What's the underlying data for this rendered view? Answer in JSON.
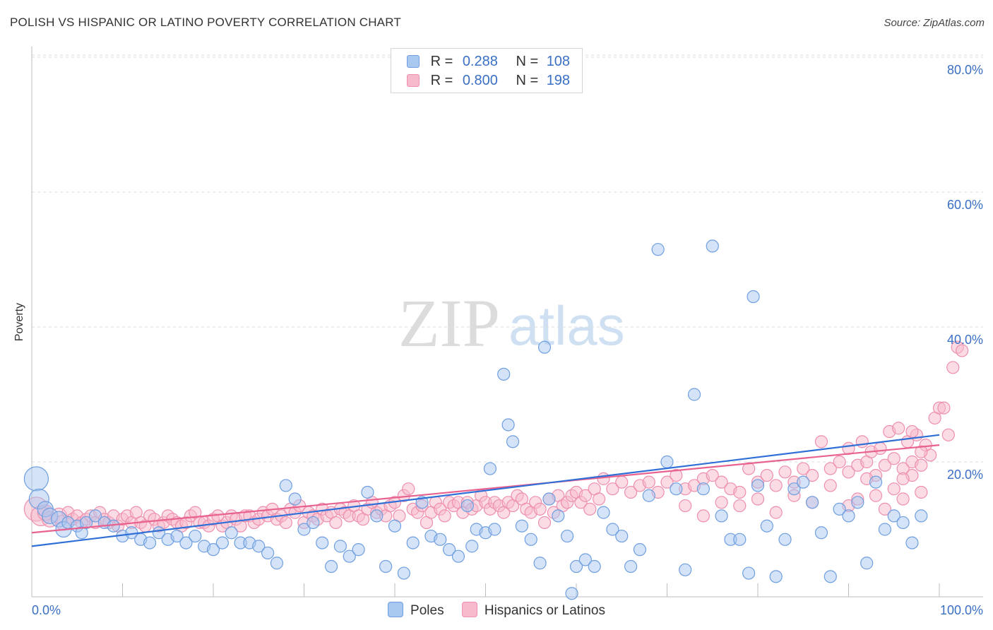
{
  "title": "POLISH VS HISPANIC OR LATINO POVERTY CORRELATION CHART",
  "source": "Source: ZipAtlas.com",
  "watermark": {
    "zip": "ZIP",
    "atlas": "atlas"
  },
  "stats": [
    {
      "r_label": "R =",
      "r_value": "0.288",
      "n_label": "N =",
      "n_value": "108"
    },
    {
      "r_label": "R =",
      "r_value": "0.800",
      "n_label": "N =",
      "n_value": "198"
    }
  ],
  "colors": {
    "poles_fill": "#a9c8f0",
    "poles_stroke": "#6f9fe0",
    "poles_line": "#2f6fd6",
    "hisp_fill": "#f7b9cc",
    "hisp_stroke": "#ee8fae",
    "hisp_line": "#e8628f",
    "axis_label": "#3a6fc4",
    "grid": "#dddddd"
  },
  "chart_data": {
    "type": "scatter",
    "title": "POLISH VS HISPANIC OR LATINO POVERTY CORRELATION CHART",
    "ylabel": "Poverty",
    "xlim": [
      0,
      100
    ],
    "ylim": [
      0,
      82
    ],
    "x_tick_labels": [
      "0.0%",
      "100.0%"
    ],
    "y_ticks": [
      20,
      40,
      60,
      80
    ],
    "y_tick_labels": [
      "20.0%",
      "40.0%",
      "60.0%",
      "80.0%"
    ],
    "grid": true,
    "legend_position": "bottom",
    "series": [
      {
        "name": "Poles",
        "r": 0.288,
        "n": 108,
        "trend": [
          [
            0,
            7.5
          ],
          [
            100,
            24
          ]
        ],
        "points": [
          [
            0.5,
            17.5
          ],
          [
            0.8,
            14.5
          ],
          [
            1.5,
            13
          ],
          [
            2,
            12
          ],
          [
            3,
            11.5
          ],
          [
            3.5,
            10
          ],
          [
            4,
            11
          ],
          [
            5,
            10.5
          ],
          [
            5.5,
            9.5
          ],
          [
            6,
            11
          ],
          [
            7,
            12
          ],
          [
            8,
            11
          ],
          [
            9,
            10.5
          ],
          [
            10,
            9
          ],
          [
            11,
            9.5
          ],
          [
            12,
            8.5
          ],
          [
            13,
            8
          ],
          [
            14,
            9.5
          ],
          [
            15,
            8.5
          ],
          [
            16,
            9
          ],
          [
            17,
            8
          ],
          [
            18,
            9
          ],
          [
            19,
            7.5
          ],
          [
            20,
            7
          ],
          [
            21,
            8
          ],
          [
            22,
            9.5
          ],
          [
            23,
            8
          ],
          [
            24,
            8
          ],
          [
            25,
            7.5
          ],
          [
            26,
            6.5
          ],
          [
            27,
            5
          ],
          [
            28,
            16.5
          ],
          [
            29,
            14.5
          ],
          [
            30,
            10
          ],
          [
            31,
            11
          ],
          [
            32,
            8
          ],
          [
            33,
            4.5
          ],
          [
            34,
            7.5
          ],
          [
            35,
            6
          ],
          [
            36,
            7
          ],
          [
            37,
            15.5
          ],
          [
            38,
            12
          ],
          [
            39,
            4.5
          ],
          [
            40,
            10.5
          ],
          [
            41,
            3.5
          ],
          [
            42,
            8
          ],
          [
            43,
            14
          ],
          [
            44,
            9
          ],
          [
            45,
            8.5
          ],
          [
            46,
            7
          ],
          [
            47,
            6
          ],
          [
            48,
            13.5
          ],
          [
            48.5,
            7.5
          ],
          [
            49,
            10
          ],
          [
            50,
            9.5
          ],
          [
            50.5,
            19
          ],
          [
            51,
            10
          ],
          [
            52,
            33
          ],
          [
            52.5,
            25.5
          ],
          [
            53,
            23
          ],
          [
            54,
            10.5
          ],
          [
            55,
            8.5
          ],
          [
            56,
            5
          ],
          [
            56.5,
            37
          ],
          [
            57,
            14.5
          ],
          [
            58,
            12
          ],
          [
            59,
            9
          ],
          [
            59.5,
            0.5
          ],
          [
            60,
            4.5
          ],
          [
            61,
            5.5
          ],
          [
            62,
            4.5
          ],
          [
            63,
            12.5
          ],
          [
            64,
            10
          ],
          [
            65,
            9
          ],
          [
            66,
            4.5
          ],
          [
            67,
            7
          ],
          [
            68,
            15
          ],
          [
            69,
            51.5
          ],
          [
            70,
            20
          ],
          [
            71,
            16
          ],
          [
            72,
            4
          ],
          [
            73,
            30
          ],
          [
            74,
            16
          ],
          [
            75,
            52
          ],
          [
            76,
            12
          ],
          [
            77,
            8.5
          ],
          [
            78,
            8.5
          ],
          [
            79,
            3.5
          ],
          [
            79.5,
            44.5
          ],
          [
            80,
            16.5
          ],
          [
            81,
            10.5
          ],
          [
            82,
            3
          ],
          [
            83,
            8.5
          ],
          [
            84,
            16
          ],
          [
            85,
            17
          ],
          [
            86,
            14
          ],
          [
            87,
            9.5
          ],
          [
            88,
            3
          ],
          [
            89,
            13
          ],
          [
            90,
            12
          ],
          [
            91,
            14
          ],
          [
            92,
            5
          ],
          [
            93,
            17
          ],
          [
            94,
            10
          ],
          [
            95,
            12
          ],
          [
            96,
            11
          ],
          [
            97,
            8
          ],
          [
            98,
            12
          ]
        ]
      },
      {
        "name": "Hispanics or Latinos",
        "r": 0.8,
        "n": 198,
        "trend": [
          [
            0,
            9.5
          ],
          [
            100,
            22.5
          ]
        ],
        "points": [
          [
            0.5,
            13
          ],
          [
            1,
            12
          ],
          [
            1.5,
            12.5
          ],
          [
            2,
            11.5
          ],
          [
            3,
            12
          ],
          [
            3.5,
            11
          ],
          [
            4,
            12.5
          ],
          [
            4.5,
            11.5
          ],
          [
            5,
            12
          ],
          [
            5.5,
            11
          ],
          [
            6,
            11.5
          ],
          [
            6.5,
            12
          ],
          [
            7,
            11
          ],
          [
            7.5,
            12.5
          ],
          [
            8,
            11.5
          ],
          [
            8.5,
            11
          ],
          [
            9,
            12
          ],
          [
            9.5,
            10.5
          ],
          [
            10,
            11.5
          ],
          [
            10.5,
            12
          ],
          [
            11,
            11
          ],
          [
            11.5,
            12.5
          ],
          [
            12,
            11
          ],
          [
            12.5,
            10.5
          ],
          [
            13,
            12
          ],
          [
            13.5,
            11.5
          ],
          [
            14,
            10.5
          ],
          [
            14.5,
            11
          ],
          [
            15,
            12
          ],
          [
            15.5,
            11.5
          ],
          [
            16,
            11
          ],
          [
            16.5,
            10.5
          ],
          [
            17,
            11
          ],
          [
            17.5,
            12
          ],
          [
            18,
            12.5
          ],
          [
            18.5,
            11
          ],
          [
            19,
            11
          ],
          [
            19.5,
            10.5
          ],
          [
            20,
            11.5
          ],
          [
            20.5,
            12
          ],
          [
            21,
            10.5
          ],
          [
            21.5,
            11
          ],
          [
            22,
            12
          ],
          [
            22.5,
            11.5
          ],
          [
            23,
            10.5
          ],
          [
            23.5,
            12
          ],
          [
            24,
            12
          ],
          [
            24.5,
            11
          ],
          [
            25,
            11.5
          ],
          [
            25.5,
            12.5
          ],
          [
            26,
            12
          ],
          [
            26.5,
            13
          ],
          [
            27,
            11.5
          ],
          [
            27.5,
            12
          ],
          [
            28,
            11
          ],
          [
            28.5,
            13
          ],
          [
            29,
            12.5
          ],
          [
            29.5,
            13.5
          ],
          [
            30,
            11
          ],
          [
            30.5,
            12.5
          ],
          [
            31,
            12
          ],
          [
            31.5,
            11.5
          ],
          [
            32,
            13
          ],
          [
            32.5,
            12
          ],
          [
            33,
            12.5
          ],
          [
            33.5,
            11
          ],
          [
            34,
            13
          ],
          [
            34.5,
            12.5
          ],
          [
            35,
            12
          ],
          [
            35.5,
            13.5
          ],
          [
            36,
            12
          ],
          [
            36.5,
            11.5
          ],
          [
            37,
            13
          ],
          [
            37.5,
            14
          ],
          [
            38,
            12.5
          ],
          [
            38.5,
            13
          ],
          [
            39,
            12
          ],
          [
            39.5,
            13.5
          ],
          [
            40,
            14
          ],
          [
            40.5,
            12
          ],
          [
            41,
            15
          ],
          [
            41.5,
            16
          ],
          [
            42,
            13
          ],
          [
            42.5,
            12.5
          ],
          [
            43,
            13.5
          ],
          [
            43.5,
            11
          ],
          [
            44,
            12.5
          ],
          [
            44.5,
            14
          ],
          [
            45,
            13
          ],
          [
            45.5,
            12
          ],
          [
            46,
            14
          ],
          [
            46.5,
            13.5
          ],
          [
            47,
            14
          ],
          [
            47.5,
            12.5
          ],
          [
            48,
            14
          ],
          [
            48.5,
            13
          ],
          [
            49,
            13.5
          ],
          [
            49.5,
            15
          ],
          [
            50,
            14
          ],
          [
            50.5,
            13
          ],
          [
            51,
            14
          ],
          [
            51.5,
            13.5
          ],
          [
            52,
            12.5
          ],
          [
            52.5,
            14
          ],
          [
            53,
            13.5
          ],
          [
            53.5,
            15
          ],
          [
            54,
            14.5
          ],
          [
            54.5,
            13
          ],
          [
            55,
            12.5
          ],
          [
            55.5,
            14
          ],
          [
            56,
            13
          ],
          [
            56.5,
            11
          ],
          [
            57,
            14.5
          ],
          [
            57.5,
            12.5
          ],
          [
            58,
            15
          ],
          [
            58.5,
            13.5
          ],
          [
            59,
            14
          ],
          [
            59.5,
            15
          ],
          [
            60,
            15.5
          ],
          [
            60.5,
            14
          ],
          [
            61,
            15
          ],
          [
            61.5,
            13
          ],
          [
            62,
            16
          ],
          [
            62.5,
            14.5
          ],
          [
            63,
            17.5
          ],
          [
            64,
            16
          ],
          [
            65,
            17
          ],
          [
            66,
            15.5
          ],
          [
            67,
            16.5
          ],
          [
            68,
            17
          ],
          [
            69,
            15.5
          ],
          [
            70,
            17
          ],
          [
            71,
            18
          ],
          [
            72,
            16
          ],
          [
            73,
            16.5
          ],
          [
            74,
            17.5
          ],
          [
            75,
            18
          ],
          [
            76,
            17
          ],
          [
            77,
            16
          ],
          [
            78,
            15.5
          ],
          [
            79,
            19
          ],
          [
            80,
            17
          ],
          [
            81,
            18
          ],
          [
            82,
            16.5
          ],
          [
            83,
            18.5
          ],
          [
            84,
            17
          ],
          [
            85,
            19
          ],
          [
            86,
            18
          ],
          [
            87,
            23
          ],
          [
            88,
            19
          ],
          [
            89,
            20
          ],
          [
            90,
            18.5
          ],
          [
            91,
            19.5
          ],
          [
            92,
            20
          ],
          [
            93,
            18
          ],
          [
            94,
            19.5
          ],
          [
            95,
            20.5
          ],
          [
            96,
            19
          ],
          [
            97,
            20
          ],
          [
            98,
            19.5
          ],
          [
            72,
            13.5
          ],
          [
            74,
            12
          ],
          [
            76,
            14
          ],
          [
            78,
            13.5
          ],
          [
            80,
            14.5
          ],
          [
            82,
            12.5
          ],
          [
            84,
            15
          ],
          [
            86,
            14
          ],
          [
            88,
            16.5
          ],
          [
            90,
            13.5
          ],
          [
            91,
            14.5
          ],
          [
            92,
            17.5
          ],
          [
            93,
            15
          ],
          [
            94,
            13
          ],
          [
            95,
            16
          ],
          [
            96,
            14.5
          ],
          [
            97,
            18
          ],
          [
            98,
            15.5
          ],
          [
            99,
            21
          ],
          [
            90,
            22
          ],
          [
            91.5,
            23
          ],
          [
            92.5,
            21.5
          ],
          [
            93.5,
            22
          ],
          [
            94.5,
            24.5
          ],
          [
            95.5,
            25
          ],
          [
            96.5,
            23
          ],
          [
            97.5,
            24
          ],
          [
            98.5,
            22.5
          ],
          [
            99.5,
            26.5
          ],
          [
            100,
            28
          ],
          [
            100.5,
            28
          ],
          [
            101,
            24
          ],
          [
            101.5,
            34
          ],
          [
            102,
            37
          ],
          [
            102.5,
            36.5
          ],
          [
            97,
            24.5
          ],
          [
            98,
            21.5
          ],
          [
            96,
            17.5
          ]
        ]
      }
    ]
  },
  "legend": [
    {
      "label": "Poles"
    },
    {
      "label": "Hispanics or Latinos"
    }
  ]
}
